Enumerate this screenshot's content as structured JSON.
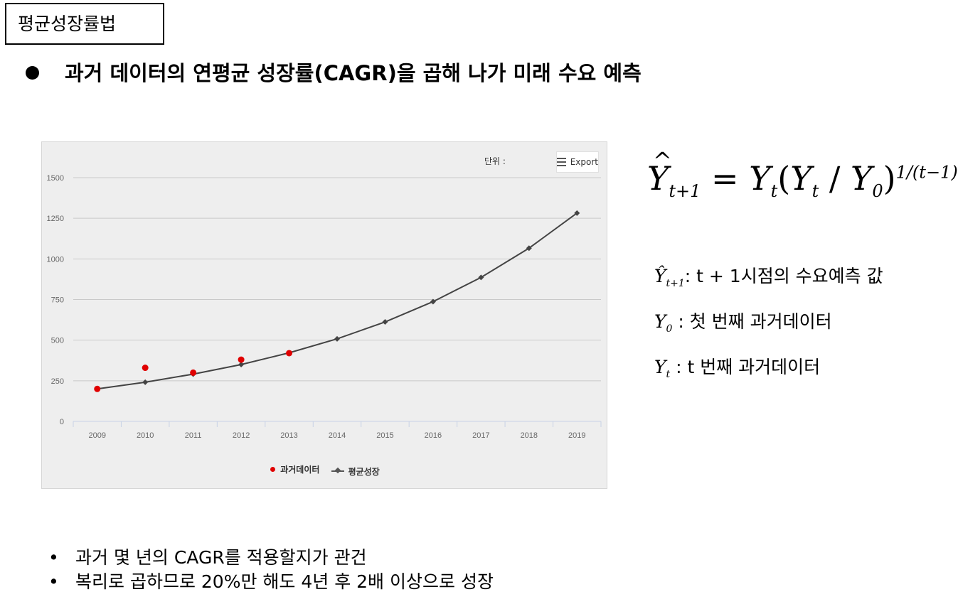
{
  "title": "평균성장률법",
  "headline": "과거 데이터의 연평균 성장률(CAGR)을 곱해 나가 미래 수요 예측",
  "chart_panel": {
    "unit_label": "단위 :",
    "export_label": "Export",
    "export_icon": "menu-icon"
  },
  "chart_data": {
    "type": "line",
    "categories": [
      "2009",
      "2010",
      "2011",
      "2012",
      "2013",
      "2014",
      "2015",
      "2016",
      "2017",
      "2018",
      "2019"
    ],
    "ylim": [
      0,
      1500
    ],
    "yticks": [
      0,
      250,
      500,
      750,
      1000,
      1250,
      1500
    ],
    "grid": true,
    "legend_position": "bottom",
    "series": [
      {
        "name": "과거데이터",
        "type": "scatter",
        "color": "#e00000",
        "values": [
          200,
          330,
          300,
          380,
          420,
          null,
          null,
          null,
          null,
          null,
          null
        ]
      },
      {
        "name": "평균성장",
        "type": "line",
        "color": "#444444",
        "values": [
          200,
          241,
          291,
          350,
          422,
          508,
          612,
          737,
          886,
          1066,
          1282
        ]
      }
    ]
  },
  "formula": {
    "y": "Y",
    "sub_t1": "t+1",
    "eq": " = ",
    "yt": "Y",
    "sub_t": "t",
    "lp": "(",
    "yt2": "Y",
    "sub_t2": "t",
    "slash": " / ",
    "y0": "Y",
    "sub_0": "0",
    "rp": ")",
    "exp": "1/(t−1)"
  },
  "definitions": [
    {
      "sym": "Ŷ",
      "sub": "t+1",
      "text": ":  t + 1시점의   수요예측   값"
    },
    {
      "sym": "Y",
      "sub": "0",
      "text": " : 첫 번째   과거데이터"
    },
    {
      "sym": "Y",
      "sub": "t",
      "text": " :   t 번째   과거데이터"
    }
  ],
  "bullets": [
    "과거  몇  년의  CAGR를  적용할지가  관건",
    "복리로  곱하므로  20%만  해도  4년  후  2배  이상으로  성장"
  ]
}
